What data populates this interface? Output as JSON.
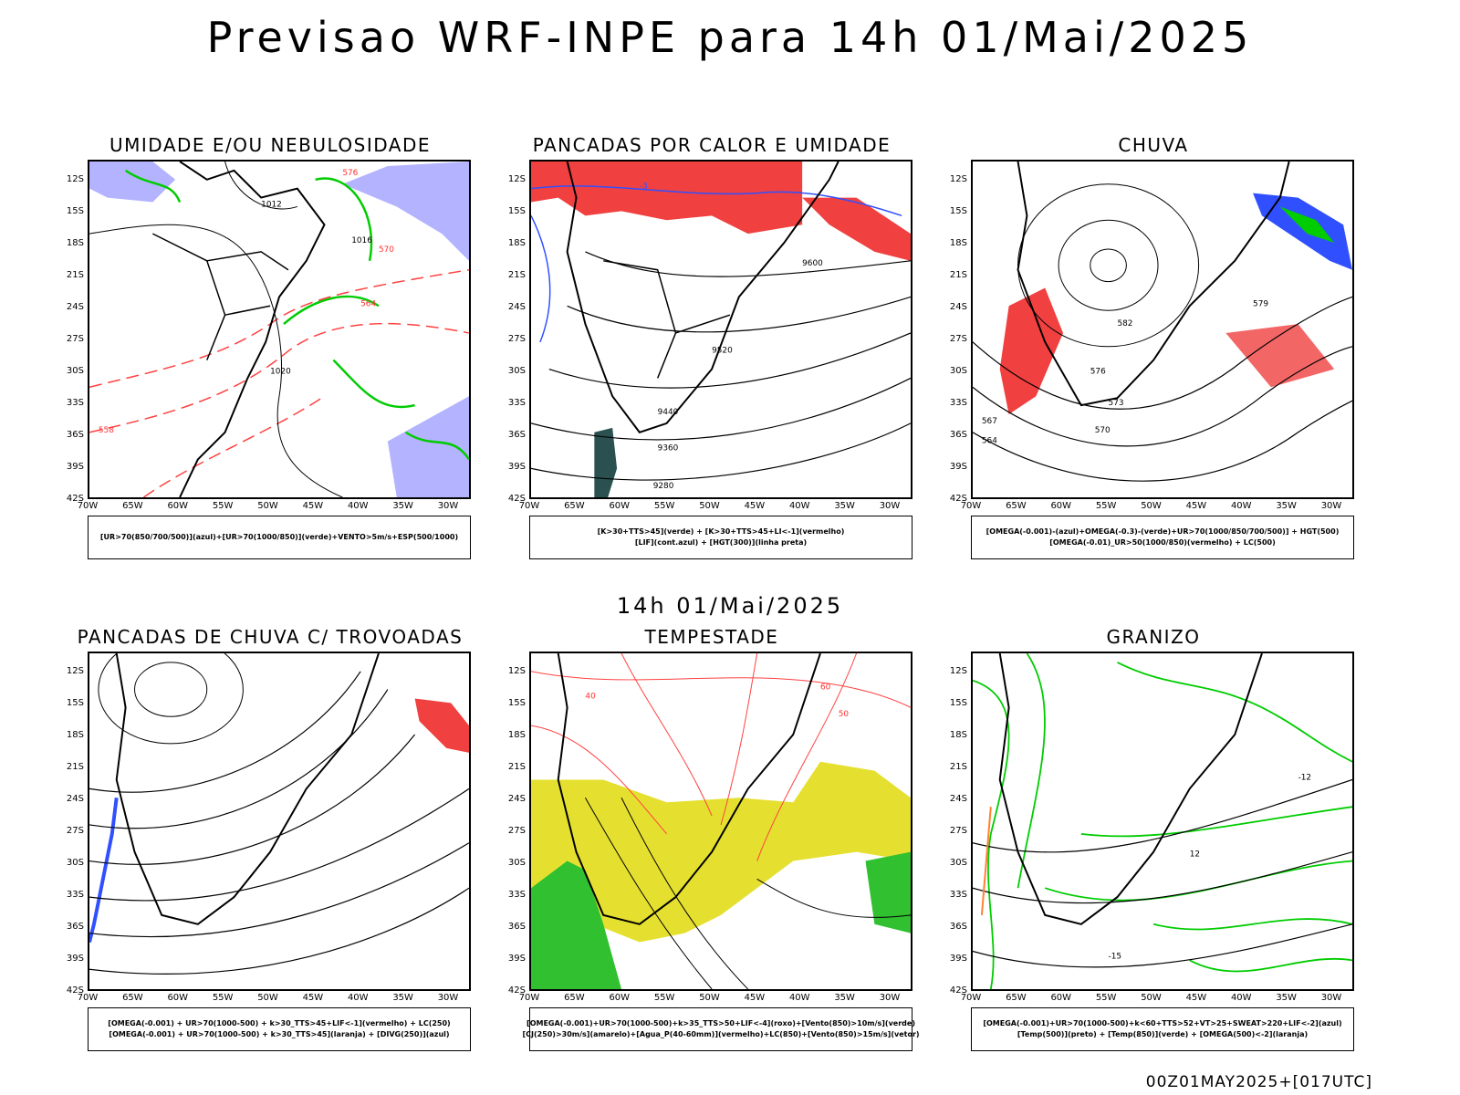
{
  "title": "Previsao WRF-INPE  para 14h 01/Mai/2025",
  "mid_title": "14h 01/Mai/2025",
  "footer": "00Z01MAY2025+[017UTC]",
  "lat_labels": [
    "12S",
    "15S",
    "18S",
    "21S",
    "24S",
    "27S",
    "30S",
    "33S",
    "36S",
    "39S",
    "42S"
  ],
  "lon_labels": [
    "70W",
    "65W",
    "60W",
    "55W",
    "50W",
    "45W",
    "40W",
    "35W",
    "30W"
  ],
  "panels": [
    {
      "id": "umidade",
      "title": "UMIDADE E/OU NEBULOSIDADE",
      "legend": [
        "[UR>70(850/700/500)](azul)+[UR>70(1000/850)](verde)+VENTO>5m/s+ESP(500/1000)"
      ],
      "labels": [
        "1012",
        "1016",
        "1020",
        "576",
        "570",
        "564",
        "558"
      ]
    },
    {
      "id": "pancadas",
      "title": "PANCADAS POR CALOR E UMIDADE",
      "legend": [
        "[K>30+TTS>45](verde) + [K>30+TTS>45+LI<-1](vermelho)",
        "[LIF](cont.azul) + [HGT(300)](linha preta)"
      ],
      "labels": [
        "9600",
        "9520",
        "9440",
        "9360",
        "9280",
        "-3"
      ]
    },
    {
      "id": "chuva",
      "title": "CHUVA",
      "legend": [
        "[OMEGA(-0.001)-(azul)+OMEGA(-0.3)-(verde)+UR>70(1000/850/700/500)] + HGT(500)",
        "[OMEGA(-0.01)_UR>50(1000/850)(vermelho) + LC(500)"
      ],
      "labels": [
        "579",
        "582",
        "576",
        "573",
        "570",
        "567",
        "564"
      ]
    },
    {
      "id": "trovoadas",
      "title": "PANCADAS DE CHUVA C/ TROVOADAS",
      "legend": [
        "[OMEGA(-0.001) + UR>70(1000-500) + k>30_TTS>45+LIF<-1](vermelho) + LC(250)",
        "[OMEGA(-0.001) + UR>70(1000-500) + k>30_TTS>45](laranja) + [DIVG(250)](azul)"
      ],
      "labels": []
    },
    {
      "id": "tempestade",
      "title": "TEMPESTADE",
      "legend": [
        "[OMEGA(-0.001)+UR>70(1000-500)+k>35_TTS>50+LIF<-4](roxo)+[Vento(850)>10m/s](verde)",
        "[CJ(250)>30m/s](amarelo)+[Agua_P(40-60mm)](vermelho)+LC(850)+[Vento(850)>15m/s](vetor)"
      ],
      "labels": [
        "40",
        "50",
        "60"
      ]
    },
    {
      "id": "granizo",
      "title": "GRANIZO",
      "legend": [
        "[OMEGA(-0.001)+UR>70(1000-500)+k<60+TTS>52+VT>25+SWEAT>220+LIF<-2](azul)",
        "[Temp(500)](preto) + [Temp(850)](verde) + [OMEGA(500)<-2](laranja)"
      ],
      "labels": [
        "-12",
        "-15",
        "12"
      ]
    }
  ]
}
